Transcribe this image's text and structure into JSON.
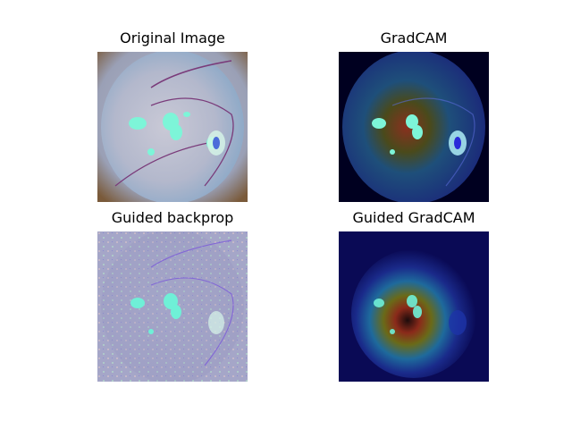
{
  "panels": [
    {
      "title": "Original Image"
    },
    {
      "title": "GradCAM"
    },
    {
      "title": "Guided backprop"
    },
    {
      "title": "Guided GradCAM"
    }
  ]
}
